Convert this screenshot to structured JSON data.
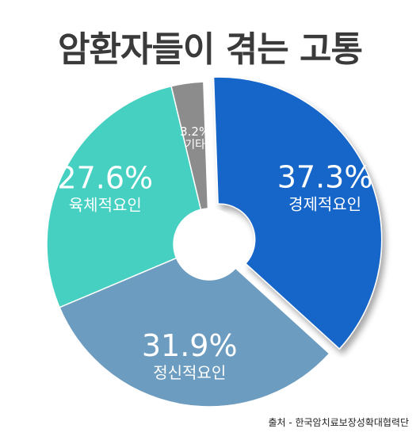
{
  "title": "암환자들이 겪는 고통",
  "source": "출처 - 한국암치료보장성확대협력단",
  "colors": {
    "economic": "#1565c8",
    "mental": "#6c9cbf",
    "physical": "#45d0c1",
    "other": "#8c8c8c"
  },
  "chart_data": {
    "type": "pie",
    "donut": true,
    "title": "암환자들이 겪는 고통",
    "slices": [
      {
        "name": "경제적요인",
        "value": 37.3,
        "label": "37.3%"
      },
      {
        "name": "정신적요인",
        "value": 31.9,
        "label": "31.9%"
      },
      {
        "name": "육체적요인",
        "value": 27.6,
        "label": "27.6%"
      },
      {
        "name": "기타",
        "value": 3.2,
        "label": "3.2%"
      }
    ],
    "exploded": "경제적요인"
  }
}
